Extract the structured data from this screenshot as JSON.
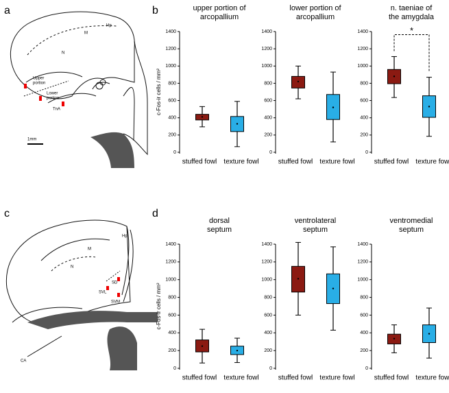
{
  "panels": [
    "a",
    "b",
    "c",
    "d"
  ],
  "diagram_a": {
    "labels": [
      "Hp",
      "M",
      "N",
      "Upper",
      "portion",
      "Lower",
      "portion",
      "TnA"
    ],
    "scale": "1mm"
  },
  "diagram_c": {
    "labels": [
      "Hp",
      "M",
      "N",
      "SD",
      "SVL",
      "SVM",
      "CA"
    ]
  },
  "chart_data": [
    {
      "type": "box",
      "title": [
        "upper portion of",
        "arcopallium"
      ],
      "ylabel": "c-Fos-ir cells / mm²",
      "ylim": [
        0,
        1400
      ],
      "yticks": [
        0,
        200,
        400,
        600,
        800,
        1000,
        1200,
        1400
      ],
      "series": [
        {
          "name": "stuffed fowl",
          "color": "#8b1a12",
          "min": 295,
          "q1": 375,
          "q3": 440,
          "max": 530,
          "mean": 410
        },
        {
          "name": "texture fowl",
          "color": "#29aee6",
          "min": 65,
          "q1": 240,
          "q3": 415,
          "max": 590,
          "mean": 330
        }
      ]
    },
    {
      "type": "box",
      "title": [
        "lower portion of",
        "arcopallium"
      ],
      "ylim": [
        0,
        1400
      ],
      "yticks": [
        0,
        200,
        400,
        600,
        800,
        1000,
        1200,
        1400
      ],
      "series": [
        {
          "name": "stuffed fowl",
          "color": "#8b1a12",
          "min": 620,
          "q1": 745,
          "q3": 880,
          "max": 1000,
          "mean": 820
        },
        {
          "name": "texture fowl",
          "color": "#29aee6",
          "min": 120,
          "q1": 380,
          "q3": 670,
          "max": 930,
          "mean": 520
        }
      ]
    },
    {
      "type": "box",
      "title": [
        "n. taeniae of",
        "the amygdala"
      ],
      "significance": "*",
      "ylim": [
        0,
        1400
      ],
      "yticks": [
        0,
        200,
        400,
        600,
        800,
        1000,
        1200,
        1400
      ],
      "series": [
        {
          "name": "stuffed fowl",
          "color": "#8b1a12",
          "min": 635,
          "q1": 795,
          "q3": 960,
          "max": 1110,
          "mean": 880
        },
        {
          "name": "texture fowl",
          "color": "#29aee6",
          "min": 185,
          "q1": 405,
          "q3": 655,
          "max": 870,
          "mean": 530
        }
      ]
    },
    {
      "type": "box",
      "title": [
        "dorsal",
        "septum"
      ],
      "ylabel": "c-Fos-ir cells / mm²",
      "ylim": [
        0,
        1400
      ],
      "yticks": [
        0,
        200,
        400,
        600,
        800,
        1000,
        1200,
        1400
      ],
      "series": [
        {
          "name": "stuffed fowl",
          "color": "#8b1a12",
          "min": 60,
          "q1": 185,
          "q3": 320,
          "max": 440,
          "mean": 250
        },
        {
          "name": "texture fowl",
          "color": "#29aee6",
          "min": 65,
          "q1": 155,
          "q3": 250,
          "max": 340,
          "mean": 200
        }
      ]
    },
    {
      "type": "box",
      "title": [
        "ventrolateral",
        "septum"
      ],
      "ylim": [
        0,
        1400
      ],
      "yticks": [
        0,
        200,
        400,
        600,
        800,
        1000,
        1200,
        1400
      ],
      "series": [
        {
          "name": "stuffed fowl",
          "color": "#8b1a12",
          "min": 600,
          "q1": 860,
          "q3": 1150,
          "max": 1420,
          "mean": 1010
        },
        {
          "name": "texture fowl",
          "color": "#29aee6",
          "min": 430,
          "q1": 730,
          "q3": 1065,
          "max": 1370,
          "mean": 900
        }
      ]
    },
    {
      "type": "box",
      "title": [
        "ventromedial",
        "septum"
      ],
      "ylim": [
        0,
        1400
      ],
      "yticks": [
        0,
        200,
        400,
        600,
        800,
        1000,
        1200,
        1400
      ],
      "series": [
        {
          "name": "stuffed fowl",
          "color": "#8b1a12",
          "min": 175,
          "q1": 275,
          "q3": 385,
          "max": 490,
          "mean": 335
        },
        {
          "name": "texture fowl",
          "color": "#29aee6",
          "min": 115,
          "q1": 290,
          "q3": 490,
          "max": 680,
          "mean": 390
        }
      ]
    }
  ]
}
